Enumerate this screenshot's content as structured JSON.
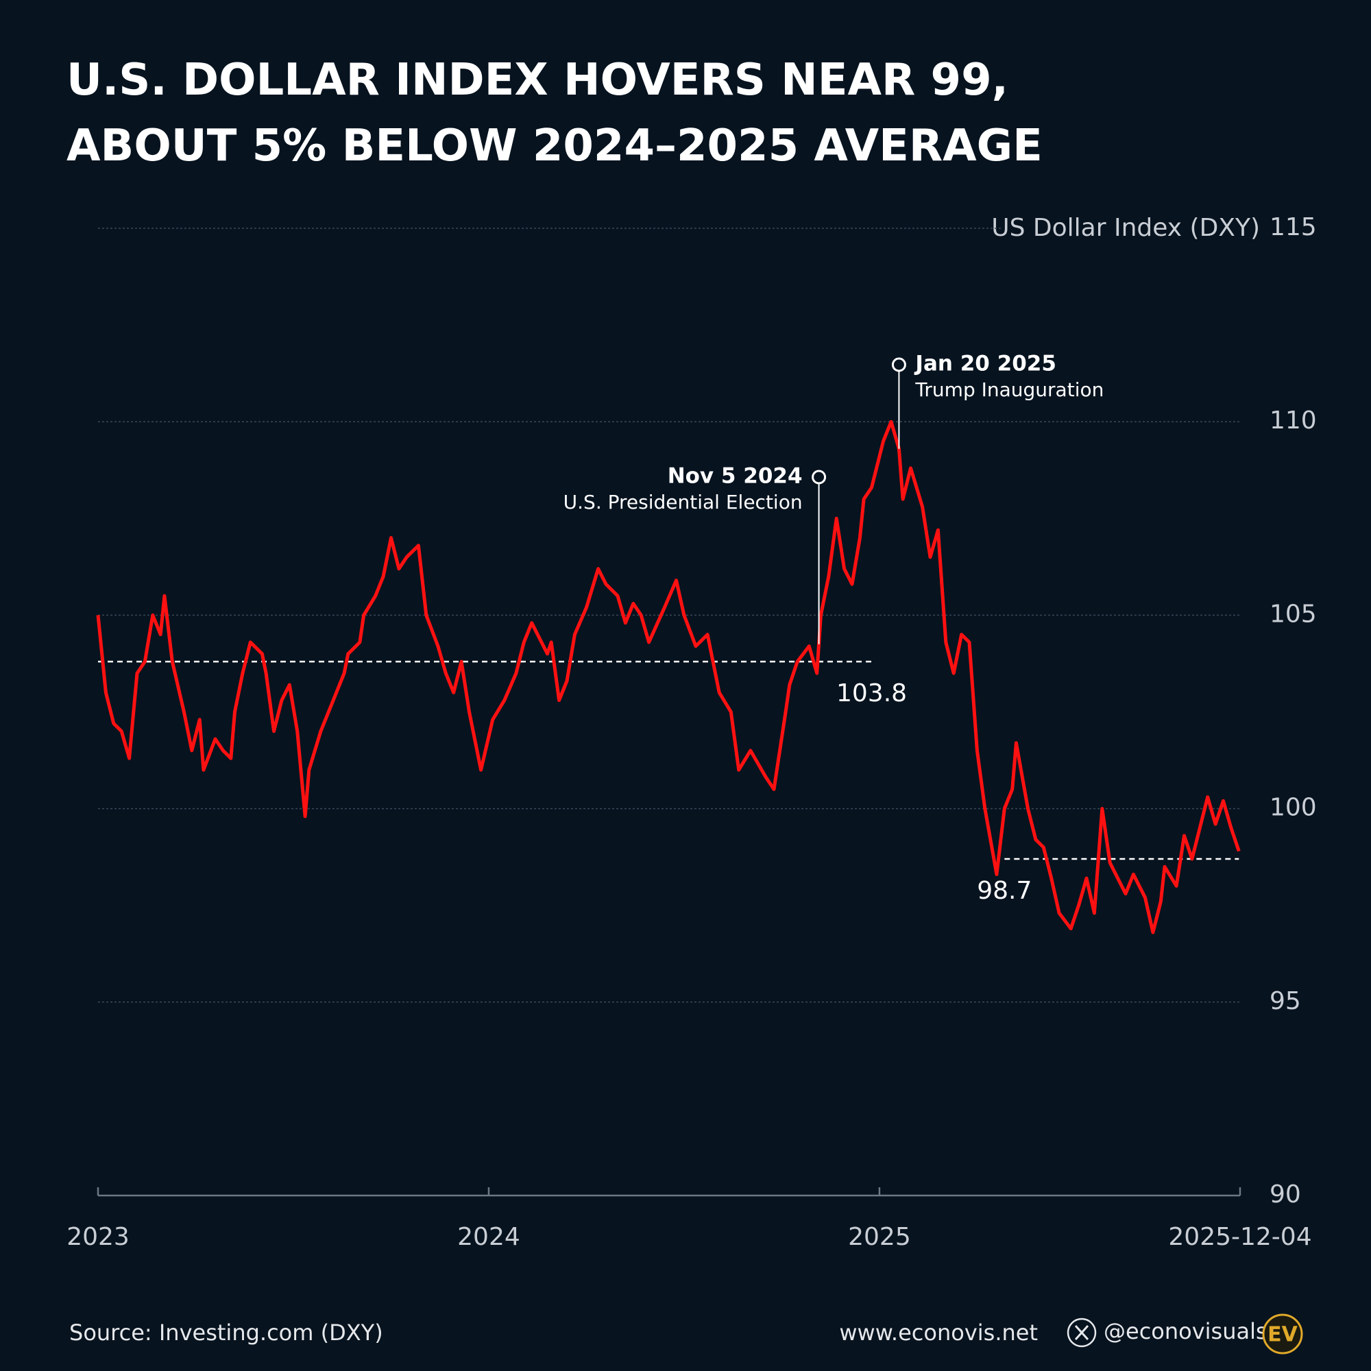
{
  "chart_data": {
    "type": "line",
    "title": [
      "U.S. DOLLAR INDEX HOVERS NEAR 99,",
      "ABOUT 5% BELOW 2024–2025 AVERAGE"
    ],
    "y_axis_label": "US Dollar Index (DXY)",
    "xlim": [
      2023,
      2025.923
    ],
    "xticks": [
      2023,
      2024,
      2025,
      {
        "value": 2025.923,
        "label": "2025-12-04"
      }
    ],
    "ylim": [
      90,
      115
    ],
    "yticks": [
      90,
      95,
      100,
      105,
      110,
      115
    ],
    "grid": true,
    "x": [
      2023.0,
      2023.02,
      2023.04,
      2023.06,
      2023.08,
      2023.1,
      2023.12,
      2023.14,
      2023.16,
      2023.17,
      2023.19,
      2023.22,
      2023.24,
      2023.26,
      2023.27,
      2023.3,
      2023.32,
      2023.34,
      2023.35,
      2023.37,
      2023.39,
      2023.42,
      2023.43,
      2023.45,
      2023.47,
      2023.49,
      2023.51,
      2023.53,
      2023.54,
      2023.57,
      2023.59,
      2023.61,
      2023.63,
      2023.64,
      2023.67,
      2023.68,
      2023.71,
      2023.73,
      2023.75,
      2023.77,
      2023.79,
      2023.82,
      2023.84,
      2023.87,
      2023.89,
      2023.91,
      2023.93,
      2023.95,
      2023.98,
      2024.01,
      2024.04,
      2024.07,
      2024.09,
      2024.11,
      2024.15,
      2024.16,
      2024.18,
      2024.2,
      2024.22,
      2024.25,
      2024.28,
      2024.3,
      2024.33,
      2024.35,
      2024.37,
      2024.39,
      2024.41,
      2024.45,
      2024.48,
      2024.5,
      2024.53,
      2024.56,
      2024.59,
      2024.62,
      2024.64,
      2024.67,
      2024.71,
      2024.73,
      2024.76,
      2024.77,
      2024.79,
      2024.82,
      2024.84,
      2024.85,
      2024.87,
      2024.89,
      2024.91,
      2024.93,
      2024.95,
      2024.96,
      2024.98,
      2025.01,
      2025.03,
      2025.05,
      2025.06,
      2025.08,
      2025.11,
      2025.13,
      2025.15,
      2025.17,
      2025.19,
      2025.21,
      2025.23,
      2025.25,
      2025.27,
      2025.3,
      2025.32,
      2025.34,
      2025.35,
      2025.38,
      2025.4,
      2025.42,
      2025.44,
      2025.46,
      2025.49,
      2025.51,
      2025.53,
      2025.55,
      2025.57,
      2025.59,
      2025.61,
      2025.63,
      2025.65,
      2025.68,
      2025.7,
      2025.72,
      2025.73,
      2025.76,
      2025.78,
      2025.8,
      2025.82,
      2025.84,
      2025.86,
      2025.88,
      2025.9,
      2025.92
    ],
    "series": [
      {
        "name": "US Dollar Index (DXY)",
        "color": "#ff1111",
        "values": [
          105.0,
          103.0,
          102.2,
          102.0,
          101.3,
          103.5,
          103.8,
          105.0,
          104.5,
          105.5,
          103.8,
          102.5,
          101.5,
          102.3,
          101.0,
          101.8,
          101.5,
          101.3,
          102.5,
          103.5,
          104.3,
          104.0,
          103.5,
          102.0,
          102.8,
          103.2,
          102.0,
          99.8,
          101.0,
          102.0,
          102.5,
          103.0,
          103.5,
          104.0,
          104.3,
          105.0,
          105.5,
          106.0,
          107.0,
          106.2,
          106.5,
          106.8,
          105.0,
          104.2,
          103.5,
          103.0,
          103.8,
          102.5,
          101.0,
          102.3,
          102.8,
          103.5,
          104.3,
          104.8,
          104.0,
          104.3,
          102.8,
          103.3,
          104.5,
          105.2,
          106.2,
          105.8,
          105.5,
          104.8,
          105.3,
          105.0,
          104.3,
          105.2,
          105.9,
          105.0,
          104.2,
          104.5,
          103.0,
          102.5,
          101.0,
          101.5,
          100.8,
          100.5,
          102.5,
          103.2,
          103.8,
          104.2,
          103.5,
          105.0,
          106.0,
          107.5,
          106.2,
          105.8,
          107.0,
          108.0,
          108.3,
          109.5,
          110.0,
          109.3,
          108.0,
          108.8,
          107.8,
          106.5,
          107.2,
          104.3,
          103.5,
          104.5,
          104.3,
          101.5,
          100.0,
          98.3,
          100.0,
          100.5,
          101.7,
          100.0,
          99.2,
          99.0,
          98.2,
          97.3,
          96.9,
          97.5,
          98.2,
          97.3,
          100.0,
          98.6,
          98.2,
          97.8,
          98.3,
          97.7,
          96.8,
          97.6,
          98.5,
          98.0,
          99.3,
          98.7,
          99.5,
          100.3,
          99.6,
          100.2,
          99.5,
          98.9
        ]
      }
    ],
    "reference_lines": [
      {
        "value": 103.8,
        "x": [
          2023.0,
          2024.98
        ]
      },
      {
        "value": 98.7,
        "x": [
          2025.32,
          2025.92
        ]
      }
    ],
    "annotations": [
      {
        "x": 2024.845,
        "date": "Nov 5 2024",
        "text": "U.S. Presidential Election"
      },
      {
        "x": 2025.05,
        "date": "Jan 20 2025",
        "text": "Trump Inauguration"
      }
    ],
    "source": "Source: Investing.com (DXY)",
    "website": "www.econovis.net",
    "handle": "@econovisuals",
    "logo": "EV"
  }
}
